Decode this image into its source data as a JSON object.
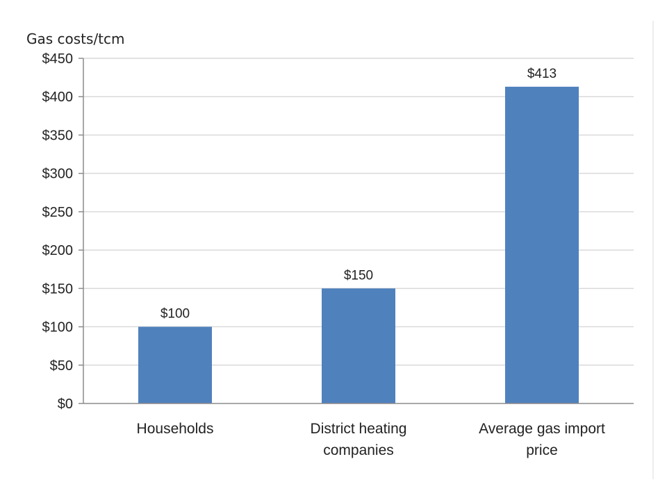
{
  "chart_data": {
    "type": "bar",
    "ylabel": "Gas costs/tcm",
    "xlabel": "",
    "title": "",
    "categories": [
      [
        "Households"
      ],
      [
        "District heating",
        "companies"
      ],
      [
        "Average gas import",
        "price"
      ]
    ],
    "values": [
      100,
      150,
      413
    ],
    "data_labels": [
      "$100",
      "$150",
      "$413"
    ],
    "ylim": [
      0,
      450
    ],
    "yticks": [
      0,
      50,
      100,
      150,
      200,
      250,
      300,
      350,
      400,
      450
    ],
    "ytick_labels": [
      "$0",
      "$50",
      "$100",
      "$150",
      "$200",
      "$250",
      "$300",
      "$350",
      "$400",
      "$450"
    ],
    "grid": true,
    "legend": "none",
    "colors": {
      "bar": "#4f81bd",
      "grid": "#d9d9d9",
      "axis": "#8c8c8c",
      "text": "#222222"
    }
  }
}
